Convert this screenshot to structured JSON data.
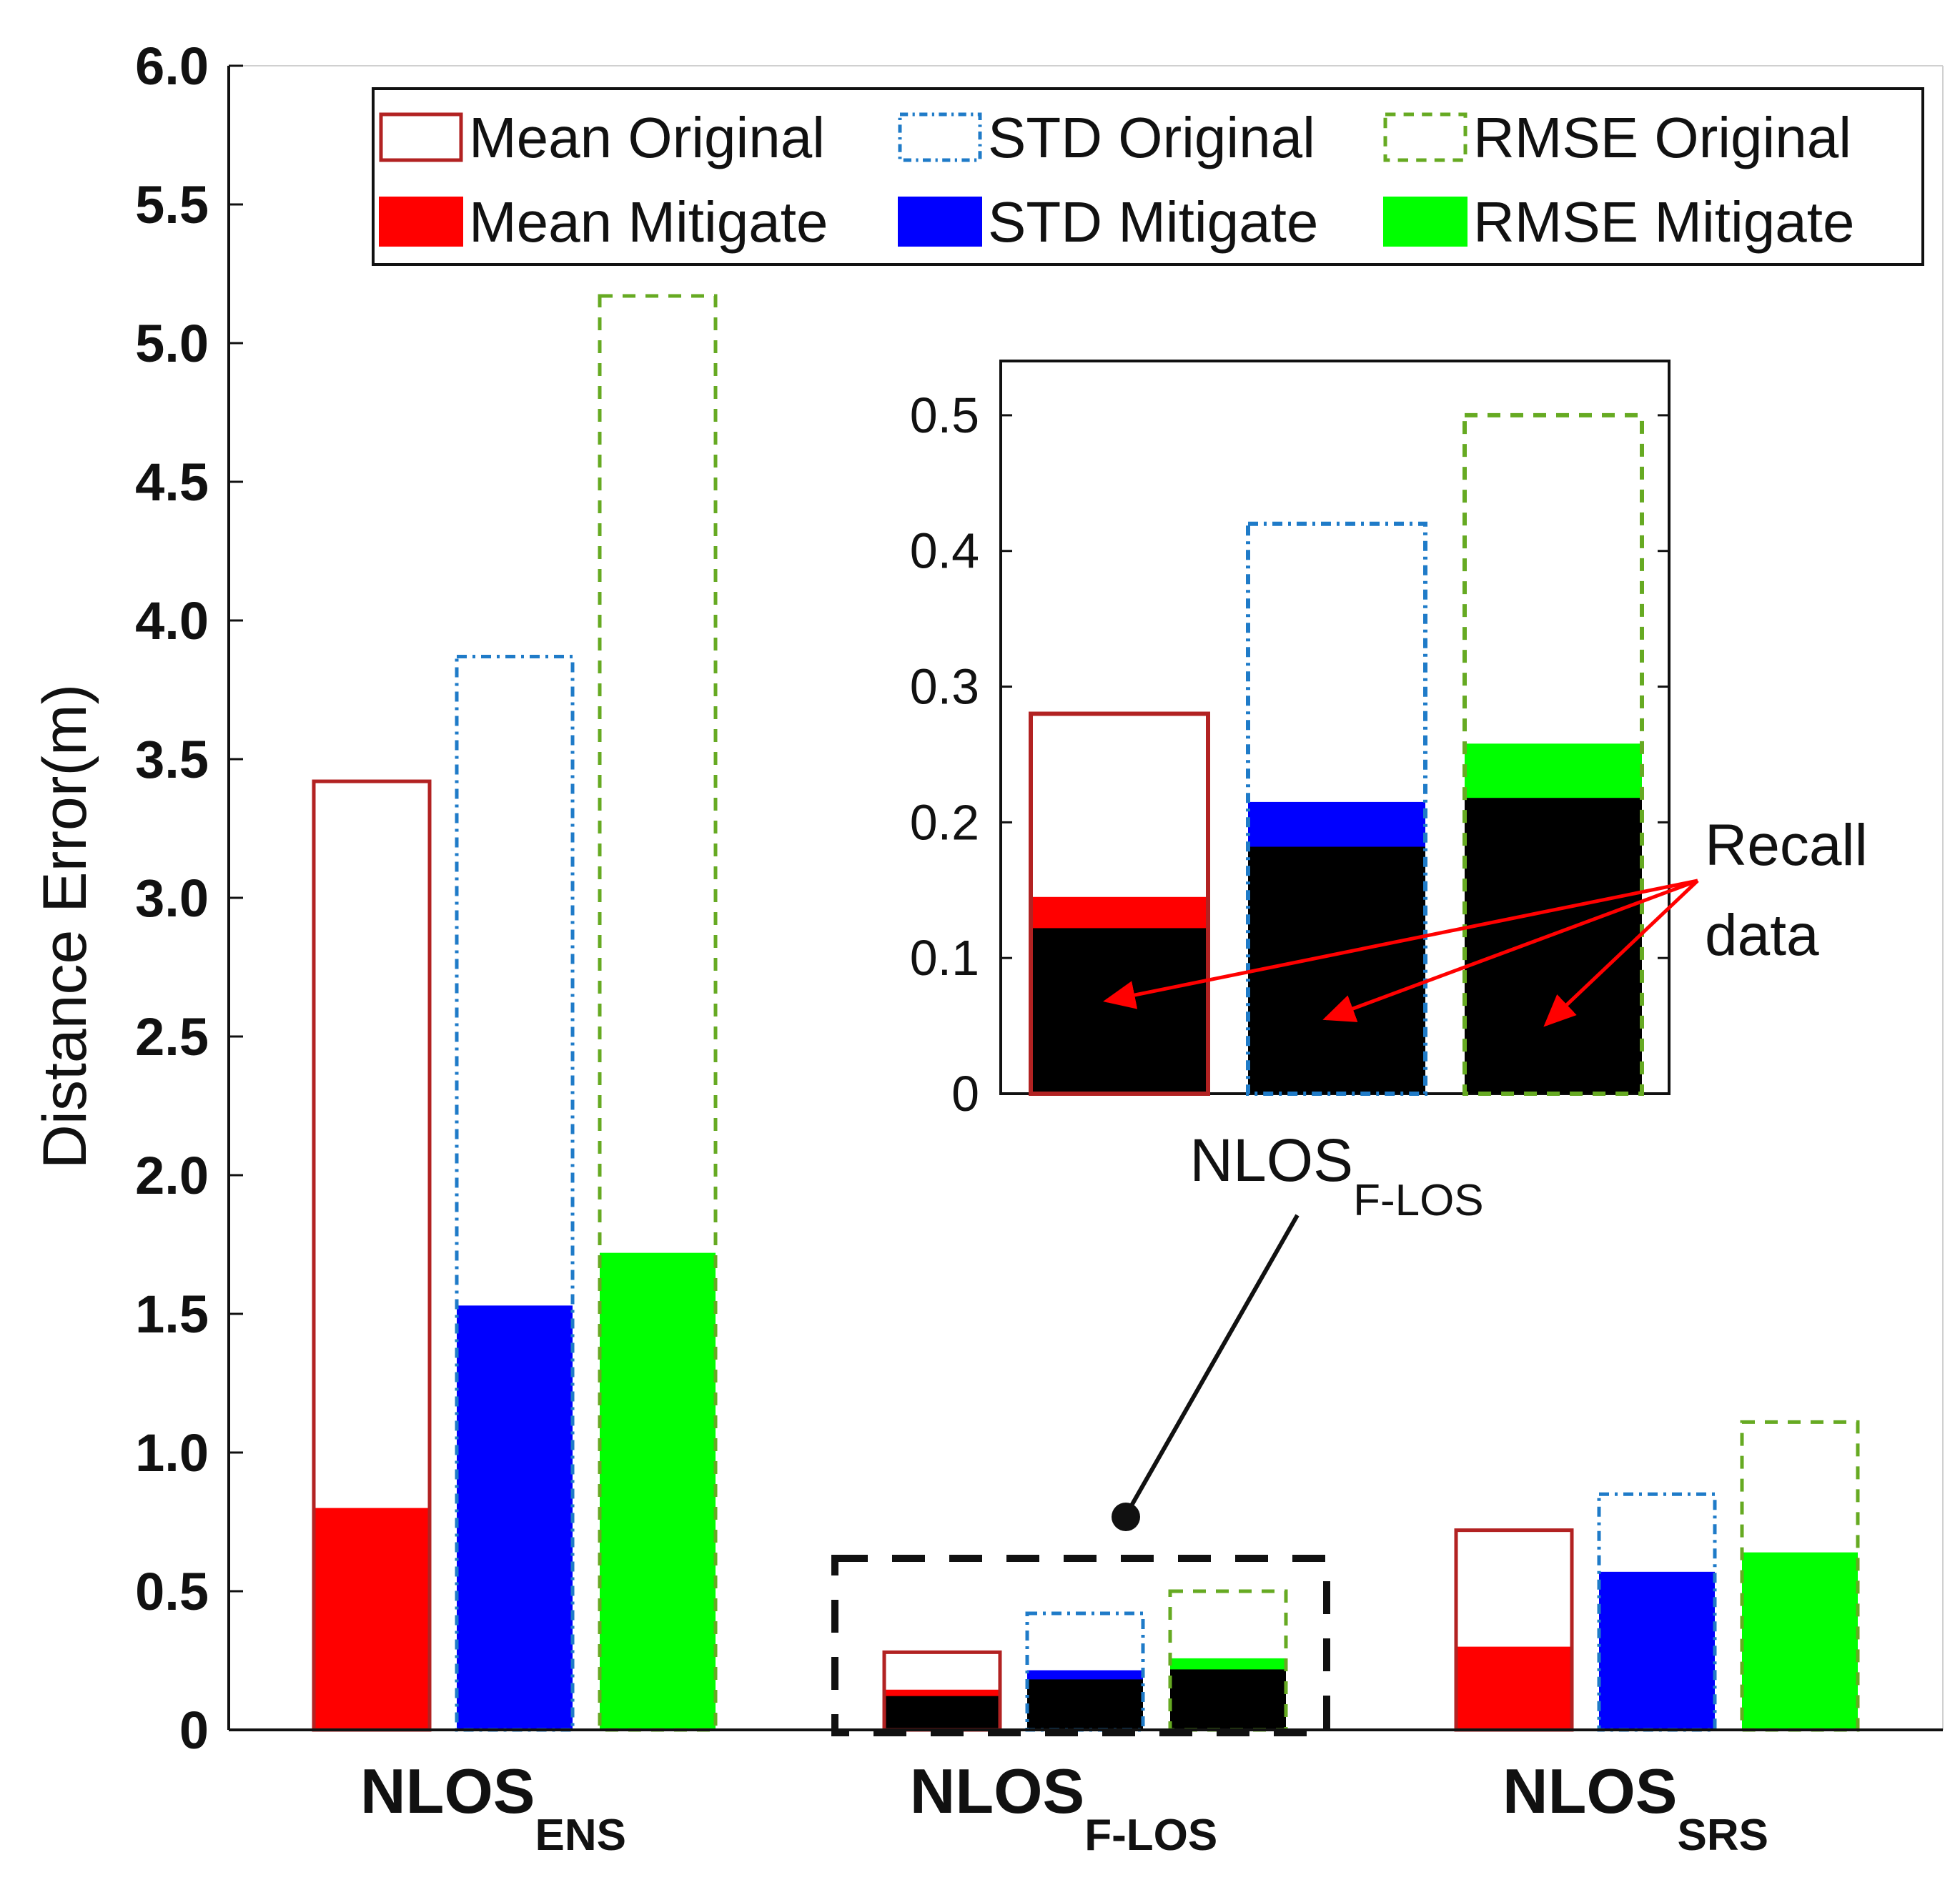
{
  "chart_data": {
    "type": "bar",
    "ylabel": "Distance Error(m)",
    "ylim": [
      0,
      6
    ],
    "yticks": [
      "0",
      "0.5",
      "1.0",
      "1.5",
      "2.0",
      "2.5",
      "3.0",
      "3.5",
      "4.0",
      "4.5",
      "5.0",
      "5.5",
      "6.0"
    ],
    "categories": [
      {
        "main": "NLOS",
        "sub": "ENS"
      },
      {
        "main": "NLOS",
        "sub": "F-LOS"
      },
      {
        "main": "NLOS",
        "sub": "SRS"
      }
    ],
    "metrics": [
      {
        "key": "mean",
        "color": "#ff0000",
        "outline": "#b22222",
        "dash": "none"
      },
      {
        "key": "std",
        "color": "#0000ff",
        "outline": "#1f7bc8",
        "dash": "dashdot"
      },
      {
        "key": "rmse",
        "color": "#00ff00",
        "outline": "#66aa22",
        "dash": "dashed"
      }
    ],
    "series": [
      {
        "name": "Mean Original",
        "values": [
          3.42,
          0.28,
          0.72
        ]
      },
      {
        "name": "STD Original",
        "values": [
          3.87,
          0.42,
          0.85
        ]
      },
      {
        "name": "RMSE Original",
        "values": [
          5.17,
          0.5,
          1.11
        ]
      },
      {
        "name": "Mean Mitigate",
        "values": [
          0.8,
          0.145,
          0.3
        ]
      },
      {
        "name": "STD Mitigate",
        "values": [
          1.53,
          0.215,
          0.57
        ]
      },
      {
        "name": "RMSE Mitigate",
        "values": [
          1.72,
          0.258,
          0.64
        ]
      },
      {
        "name": "Recall data",
        "values": [
          null,
          [
            0.122,
            0.182,
            0.218
          ],
          null
        ]
      }
    ],
    "legend": {
      "placement": "top-right",
      "entries": [
        "Mean Original",
        "STD Original",
        "RMSE Original",
        "Mean Mitigate",
        "STD Mitigate",
        "RMSE Mitigate"
      ]
    },
    "inset": {
      "category": {
        "main": "NLOS",
        "sub": "F-LOS"
      },
      "ylim": [
        0,
        0.54
      ],
      "yticks": [
        "0",
        "0.1",
        "0.2",
        "0.3",
        "0.4",
        "0.5"
      ]
    },
    "annotation": {
      "line1": "Recall",
      "line2": "data"
    }
  }
}
